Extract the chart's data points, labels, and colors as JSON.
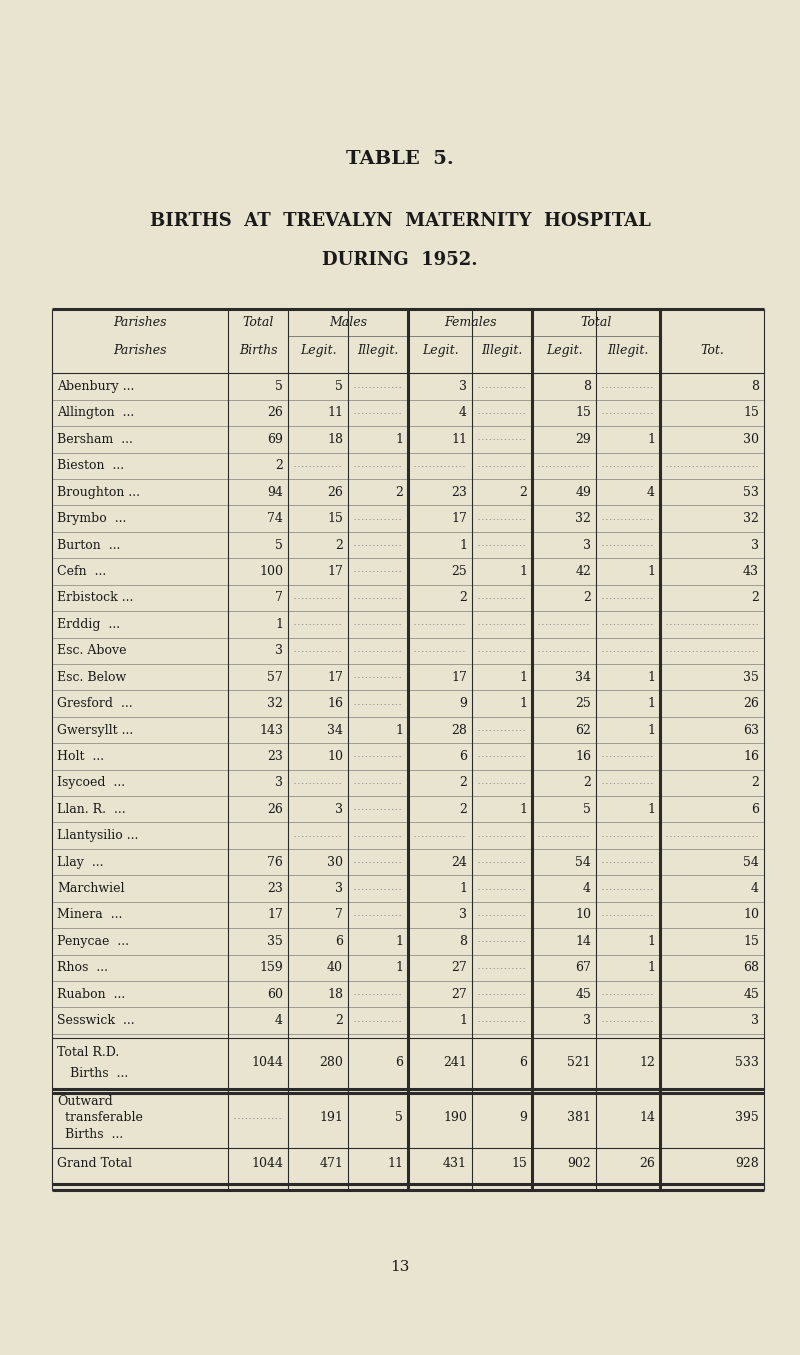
{
  "table_title": "TABLE  5.",
  "subtitle1": "BIRTHS  AT  TREVALYN  MATERNITY  HOSPITAL",
  "subtitle2": "DURING  1952.",
  "bg_color": "#e8e4d0",
  "text_color": "#1a1a1a",
  "col_headers_row1_labels": [
    "Parishes",
    "Total\nBirths",
    "Males",
    "Females",
    "Total"
  ],
  "col_headers_row2": [
    "Parishes",
    "Births",
    "Legit.",
    "Illegit.",
    "Legit.",
    "Illegit.",
    "Legit.",
    "Illegit.",
    "Tot."
  ],
  "rows": [
    [
      "Abenbury ...",
      "5",
      "5",
      "",
      "3",
      "",
      "8",
      "",
      "8"
    ],
    [
      "Allington  ...",
      "26",
      "11",
      "",
      "4",
      "",
      "15",
      "",
      "15"
    ],
    [
      "Bersham  ...",
      "69",
      "18",
      "1",
      "11",
      "",
      "29",
      "1",
      "30"
    ],
    [
      "Bieston  ...",
      "2",
      "",
      "",
      "",
      "",
      "",
      "",
      ""
    ],
    [
      "Broughton ...",
      "94",
      "26",
      "2",
      "23",
      "2",
      "49",
      "4",
      "53"
    ],
    [
      "Brymbo  ...",
      "74",
      "15",
      "",
      "17",
      "",
      "32",
      "",
      "32"
    ],
    [
      "Burton  ...",
      "5",
      "2",
      "",
      "1",
      "",
      "3",
      "",
      "3"
    ],
    [
      "Cefn  ...",
      "100",
      "17",
      "",
      "25",
      "1",
      "42",
      "1",
      "43"
    ],
    [
      "Erbistock ...",
      "7",
      "",
      "",
      "2",
      "",
      "2",
      "",
      "2"
    ],
    [
      "Erddig  ...",
      "1",
      "",
      "",
      "",
      "",
      "",
      "",
      ""
    ],
    [
      "Esc. Above",
      "3",
      "",
      "",
      "",
      "",
      "",
      "",
      ""
    ],
    [
      "Esc. Below",
      "57",
      "17",
      "",
      "17",
      "1",
      "34",
      "1",
      "35"
    ],
    [
      "Gresford  ...",
      "32",
      "16",
      "",
      "9",
      "1",
      "25",
      "1",
      "26"
    ],
    [
      "Gwersyllt ...",
      "143",
      "34",
      "1",
      "28",
      "",
      "62",
      "1",
      "63"
    ],
    [
      "Holt  ...",
      "23",
      "10",
      "",
      "6",
      "",
      "16",
      "",
      "16"
    ],
    [
      "Isycoed  ...",
      "3",
      "",
      "",
      "2",
      "",
      "2",
      "",
      "2"
    ],
    [
      "Llan. R.  ...",
      "26",
      "3",
      "",
      "2",
      "1",
      "5",
      "1",
      "6"
    ],
    [
      "Llantysilio ...",
      "",
      "",
      "",
      "",
      "",
      "",
      "",
      ""
    ],
    [
      "Llay  ...",
      "76",
      "30",
      "",
      "24",
      "",
      "54",
      "",
      "54"
    ],
    [
      "Marchwiel",
      "23",
      "3",
      "",
      "1",
      "",
      "4",
      "",
      "4"
    ],
    [
      "Minera  ...",
      "17",
      "7",
      "",
      "3",
      "",
      "10",
      "",
      "10"
    ],
    [
      "Penycae  ...",
      "35",
      "6",
      "1",
      "8",
      "",
      "14",
      "1",
      "15"
    ],
    [
      "Rhos  ...",
      "159",
      "40",
      "1",
      "27",
      "",
      "67",
      "1",
      "68"
    ],
    [
      "Ruabon  ...",
      "60",
      "18",
      "",
      "27",
      "",
      "45",
      "",
      "45"
    ],
    [
      "Sesswick  ...",
      "4",
      "2",
      "",
      "1",
      "",
      "3",
      "",
      "3"
    ]
  ],
  "total_rd_label1": "Total R.D.",
  "total_rd_label2": "  Births  ...",
  "total_rd_row": [
    "",
    "1044",
    "280",
    "6",
    "241",
    "6",
    "521",
    "12",
    "533"
  ],
  "outward_label1": "Outward",
  "outward_label2": "  transferable",
  "outward_label3": "  Births  ...",
  "outward_row": [
    "",
    "",
    "191",
    "5",
    "190",
    "9",
    "381",
    "14",
    "395"
  ],
  "grand_total_row": [
    "Grand Total",
    "1044",
    "471",
    "11",
    "431",
    "15",
    "902",
    "26",
    "928"
  ],
  "page_number": "13"
}
